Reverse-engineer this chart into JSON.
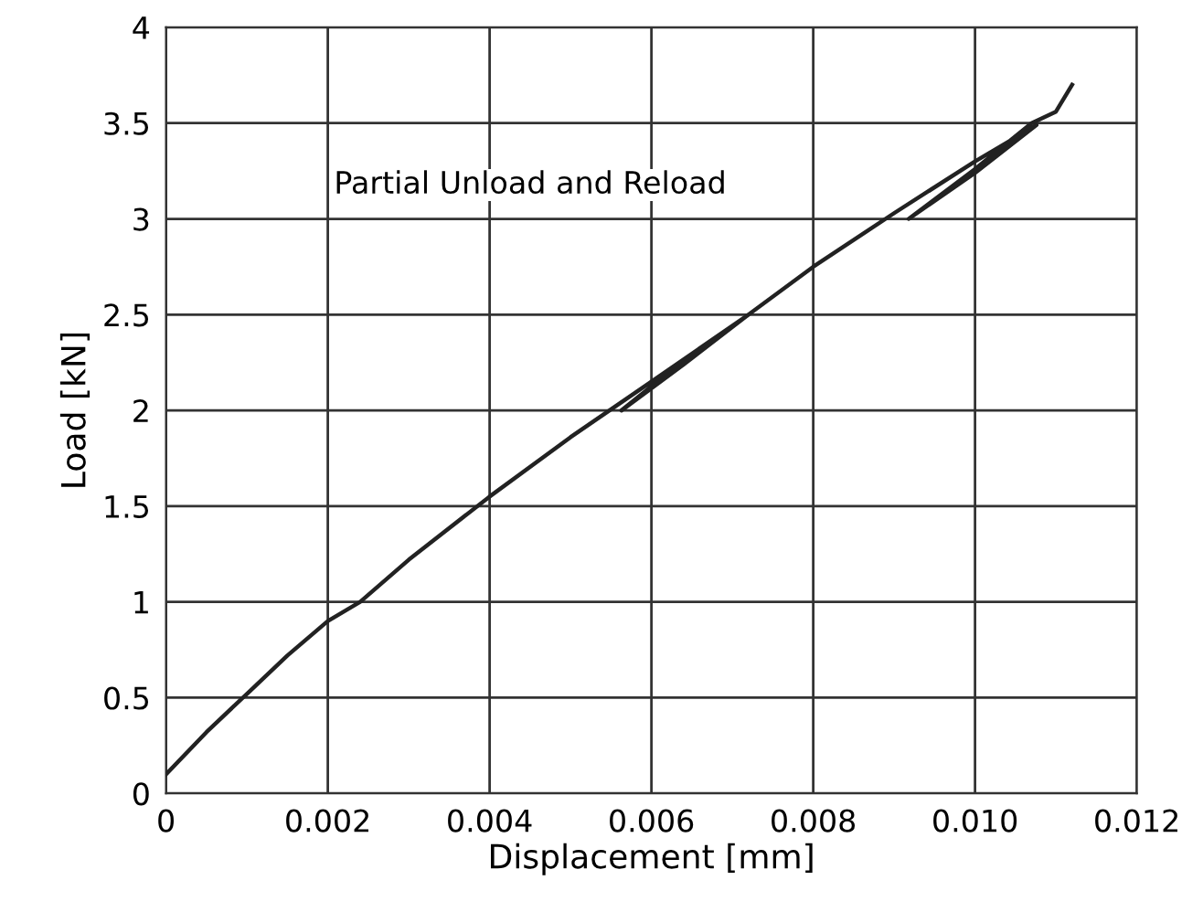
{
  "chart_data": {
    "type": "line",
    "xlabel": "Displacement [mm]",
    "ylabel": "Load [kN]",
    "annotations": [
      "Partial Unload and Reload"
    ],
    "series": [
      {
        "color": "#222222",
        "x": [
          0,
          0.0005,
          0.001,
          0.0015,
          0.002,
          0.0024,
          0.003,
          0.004,
          0.005,
          0.006,
          0.0072,
          0.0064,
          0.00563,
          0.0064,
          0.0072,
          0.008,
          0.009,
          0.01,
          0.01076,
          0.01,
          0.00918,
          0.01,
          0.0107,
          0.011,
          0.0112
        ],
        "values": [
          0.1,
          0.32,
          0.52,
          0.72,
          0.9,
          1.0,
          1.22,
          1.55,
          1.86,
          2.15,
          2.5,
          2.24,
          2.0,
          2.26,
          2.5,
          2.75,
          3.03,
          3.3,
          3.49,
          3.24,
          3.0,
          3.26,
          3.5,
          3.56,
          3.7
        ]
      }
    ],
    "xlim": [
      0,
      0.012
    ],
    "ylim": [
      0,
      4
    ],
    "xticks": [
      0,
      0.002,
      0.004,
      0.006,
      0.008,
      {
        "value": 0.01,
        "label": "0.010"
      },
      0.012
    ],
    "yticks": [
      0,
      0.5,
      1,
      1.5,
      2,
      2.5,
      3,
      3.5,
      4
    ],
    "grid": true,
    "legend": false,
    "marker": "none",
    "line_style": "solid"
  }
}
